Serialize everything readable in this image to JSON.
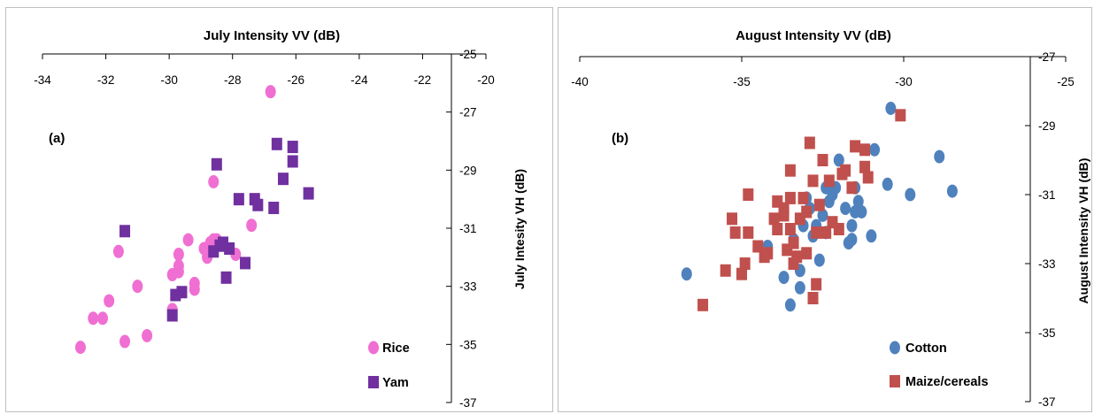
{
  "chart_data": [
    {
      "type": "scatter",
      "panel_label": "(a)",
      "title": "July Intensity VV (dB)",
      "xlabel": "July Intensity VV (dB)",
      "ylabel": "July Intesity VH (dB)",
      "xlim": [
        -34,
        -20
      ],
      "ylim": [
        -37,
        -25
      ],
      "x_ticks": [
        -34,
        -32,
        -30,
        -28,
        -26,
        -24,
        -22,
        -20
      ],
      "y_ticks": [
        -25,
        -27,
        -29,
        -31,
        -33,
        -35,
        -37
      ],
      "axis_position": "x-axis top, y-axis right",
      "grid": false,
      "legend_position": "bottom-right",
      "series": [
        {
          "name": "Rice",
          "color": "#f06fd2",
          "marker": "circle",
          "points": [
            [
              -32.8,
              -35.1
            ],
            [
              -32.4,
              -34.1
            ],
            [
              -32.1,
              -34.1
            ],
            [
              -31.9,
              -33.5
            ],
            [
              -31.6,
              -31.8
            ],
            [
              -31.4,
              -34.9
            ],
            [
              -31.0,
              -33.0
            ],
            [
              -30.7,
              -34.7
            ],
            [
              -29.9,
              -32.6
            ],
            [
              -29.9,
              -33.8
            ],
            [
              -29.7,
              -32.5
            ],
            [
              -29.7,
              -32.3
            ],
            [
              -29.7,
              -31.9
            ],
            [
              -29.4,
              -31.4
            ],
            [
              -29.2,
              -32.9
            ],
            [
              -29.2,
              -33.1
            ],
            [
              -28.9,
              -31.7
            ],
            [
              -28.8,
              -32.0
            ],
            [
              -28.7,
              -31.5
            ],
            [
              -28.6,
              -29.4
            ],
            [
              -28.6,
              -31.4
            ],
            [
              -28.5,
              -31.4
            ],
            [
              -27.9,
              -31.9
            ],
            [
              -27.4,
              -30.9
            ],
            [
              -26.8,
              -26.3
            ]
          ]
        },
        {
          "name": "Yam",
          "color": "#7030a0",
          "marker": "square",
          "points": [
            [
              -31.4,
              -31.1
            ],
            [
              -29.8,
              -33.3
            ],
            [
              -29.9,
              -34.0
            ],
            [
              -29.6,
              -33.2
            ],
            [
              -28.6,
              -31.8
            ],
            [
              -28.5,
              -28.8
            ],
            [
              -28.3,
              -31.5
            ],
            [
              -28.2,
              -32.7
            ],
            [
              -28.1,
              -31.7
            ],
            [
              -27.8,
              -30.0
            ],
            [
              -27.6,
              -32.2
            ],
            [
              -27.3,
              -30.0
            ],
            [
              -27.2,
              -30.2
            ],
            [
              -26.7,
              -30.3
            ],
            [
              -26.6,
              -28.1
            ],
            [
              -26.4,
              -29.3
            ],
            [
              -26.1,
              -28.2
            ],
            [
              -26.1,
              -28.7
            ],
            [
              -25.6,
              -29.8
            ],
            [
              -28.4,
              -31.6
            ]
          ]
        }
      ]
    },
    {
      "type": "scatter",
      "panel_label": "(b)",
      "title": "August Intensity VV (dB)",
      "xlabel": "August Intensity VV (dB)",
      "ylabel": "August Intensity VH (dB)",
      "xlim": [
        -40,
        -25
      ],
      "ylim": [
        -37,
        -27
      ],
      "x_ticks": [
        -40,
        -35,
        -30,
        -25
      ],
      "y_ticks": [
        -27,
        -29,
        -31,
        -33,
        -35,
        -37
      ],
      "axis_position": "x-axis top, y-axis right",
      "grid": false,
      "legend_position": "bottom-right",
      "series": [
        {
          "name": "Cotton",
          "color": "#4f81bd",
          "marker": "circle",
          "points": [
            [
              -36.7,
              -33.3
            ],
            [
              -34.2,
              -32.5
            ],
            [
              -33.7,
              -33.4
            ],
            [
              -33.5,
              -34.2
            ],
            [
              -33.4,
              -32.3
            ],
            [
              -33.2,
              -33.2
            ],
            [
              -33.2,
              -33.7
            ],
            [
              -33.1,
              -31.9
            ],
            [
              -33.0,
              -31.1
            ],
            [
              -32.9,
              -31.4
            ],
            [
              -32.8,
              -32.2
            ],
            [
              -32.7,
              -31.9
            ],
            [
              -32.6,
              -32.9
            ],
            [
              -32.5,
              -31.6
            ],
            [
              -32.4,
              -32.1
            ],
            [
              -32.4,
              -30.8
            ],
            [
              -32.3,
              -31.2
            ],
            [
              -32.2,
              -31.0
            ],
            [
              -32.0,
              -30.0
            ],
            [
              -32.1,
              -30.8
            ],
            [
              -31.8,
              -31.4
            ],
            [
              -31.7,
              -32.4
            ],
            [
              -31.6,
              -31.9
            ],
            [
              -31.5,
              -31.5
            ],
            [
              -31.5,
              -30.8
            ],
            [
              -31.4,
              -31.2
            ],
            [
              -31.3,
              -31.5
            ],
            [
              -31.0,
              -32.2
            ],
            [
              -30.9,
              -29.7
            ],
            [
              -30.5,
              -30.7
            ],
            [
              -30.4,
              -28.5
            ],
            [
              -29.8,
              -31.0
            ],
            [
              -28.9,
              -29.9
            ],
            [
              -28.5,
              -30.9
            ],
            [
              -31.6,
              -32.3
            ]
          ]
        },
        {
          "name": "Maize/cereals",
          "color": "#c0504d",
          "marker": "square",
          "points": [
            [
              -36.2,
              -34.2
            ],
            [
              -35.5,
              -33.2
            ],
            [
              -35.3,
              -31.7
            ],
            [
              -35.2,
              -32.1
            ],
            [
              -35.0,
              -33.3
            ],
            [
              -34.9,
              -33.0
            ],
            [
              -34.8,
              -31.0
            ],
            [
              -34.8,
              -32.1
            ],
            [
              -34.5,
              -32.5
            ],
            [
              -34.3,
              -32.8
            ],
            [
              -34.2,
              -32.7
            ],
            [
              -34.0,
              -31.7
            ],
            [
              -33.9,
              -32.0
            ],
            [
              -33.9,
              -31.2
            ],
            [
              -33.7,
              -31.6
            ],
            [
              -33.7,
              -31.4
            ],
            [
              -33.6,
              -32.6
            ],
            [
              -33.5,
              -30.3
            ],
            [
              -33.5,
              -31.1
            ],
            [
              -33.5,
              -32.0
            ],
            [
              -33.4,
              -32.4
            ],
            [
              -33.4,
              -33.0
            ],
            [
              -33.3,
              -32.8
            ],
            [
              -33.2,
              -31.7
            ],
            [
              -33.1,
              -31.1
            ],
            [
              -33.0,
              -32.7
            ],
            [
              -33.0,
              -31.5
            ],
            [
              -32.9,
              -29.5
            ],
            [
              -32.8,
              -34.0
            ],
            [
              -32.8,
              -30.6
            ],
            [
              -32.7,
              -32.1
            ],
            [
              -32.7,
              -33.6
            ],
            [
              -32.6,
              -31.3
            ],
            [
              -32.5,
              -30.0
            ],
            [
              -32.4,
              -32.1
            ],
            [
              -32.3,
              -30.6
            ],
            [
              -32.2,
              -31.8
            ],
            [
              -32.0,
              -32.0
            ],
            [
              -31.9,
              -30.4
            ],
            [
              -31.8,
              -30.3
            ],
            [
              -31.6,
              -30.8
            ],
            [
              -31.5,
              -29.6
            ],
            [
              -31.2,
              -29.7
            ],
            [
              -31.2,
              -30.2
            ],
            [
              -31.1,
              -30.5
            ],
            [
              -30.1,
              -28.7
            ]
          ]
        }
      ]
    }
  ]
}
